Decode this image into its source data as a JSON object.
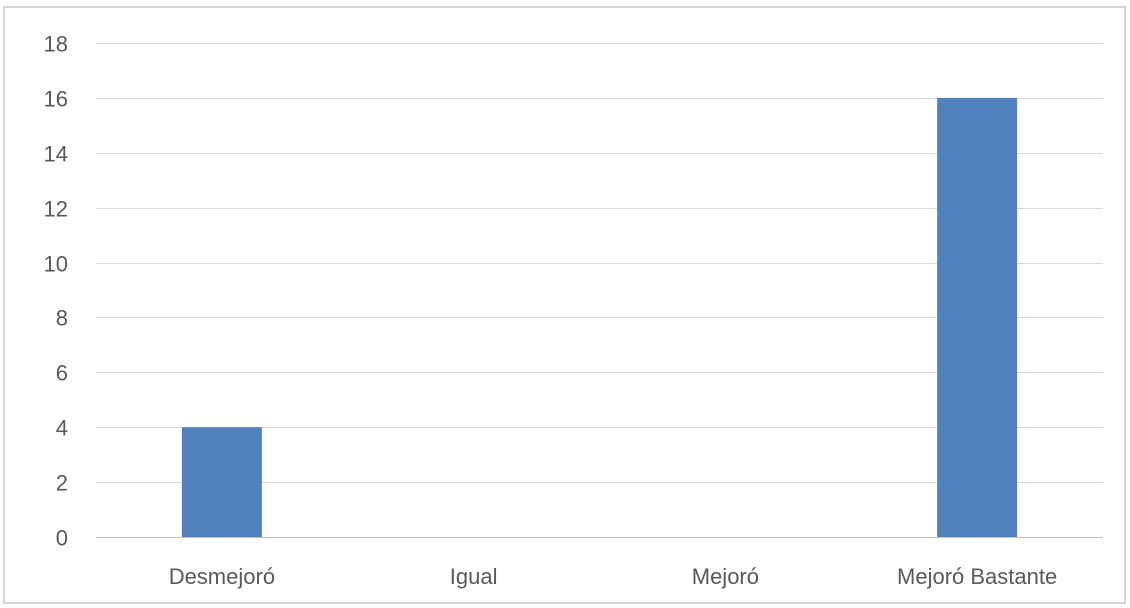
{
  "chart_data": {
    "type": "bar",
    "categories": [
      "Desmejoró",
      "Igual",
      "Mejoró",
      "Mejoró Bastante"
    ],
    "values": [
      4,
      0,
      0,
      16
    ],
    "title": "",
    "xlabel": "",
    "ylabel": "",
    "ylim": [
      0,
      18
    ],
    "yticks": [
      0,
      2,
      4,
      6,
      8,
      10,
      12,
      14,
      16,
      18
    ],
    "grid": true,
    "legend": "none",
    "colors": {
      "bar": "#4f81bd",
      "grid": "#d9d9d9",
      "axis": "#bfbfbf",
      "text": "#595959"
    }
  }
}
